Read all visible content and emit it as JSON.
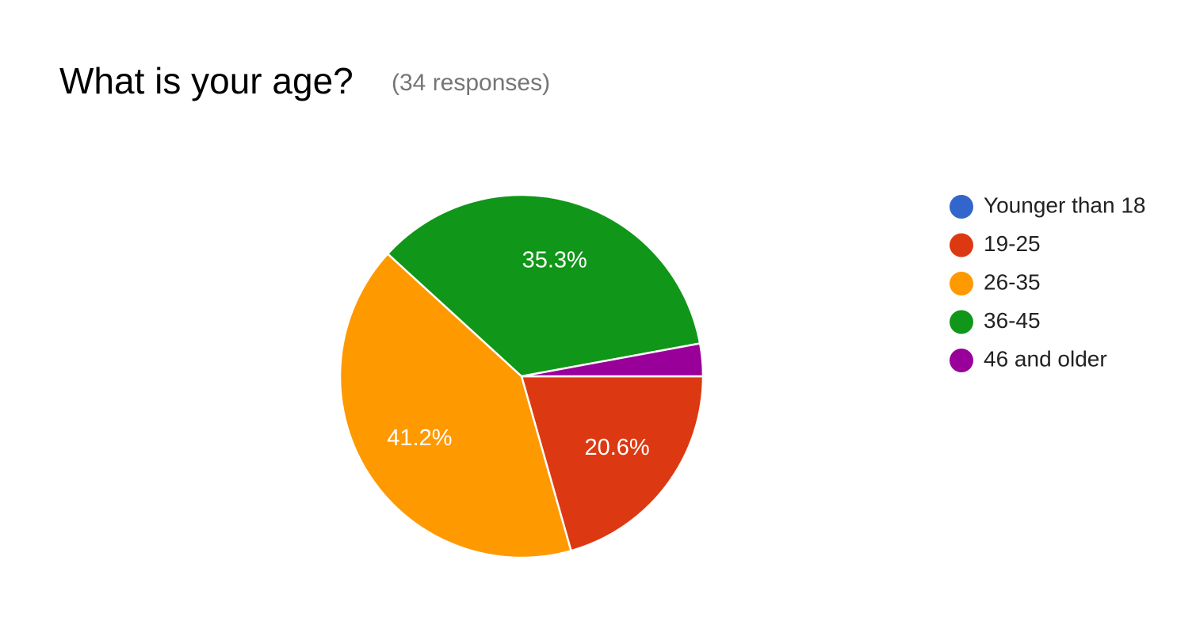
{
  "chart_data": {
    "type": "pie",
    "title": "What is your age?",
    "subtitle": "(34 responses)",
    "categories": [
      "Younger than 18",
      "19-25",
      "26-35",
      "36-45",
      "46 and older"
    ],
    "values": [
      0,
      20.6,
      41.2,
      35.3,
      2.9
    ],
    "value_labels": [
      null,
      "20.6%",
      "41.2%",
      "35.3%",
      null
    ],
    "colors": [
      "#3366cc",
      "#dc3912",
      "#ff9900",
      "#109618",
      "#990099"
    ],
    "legend": "right"
  }
}
